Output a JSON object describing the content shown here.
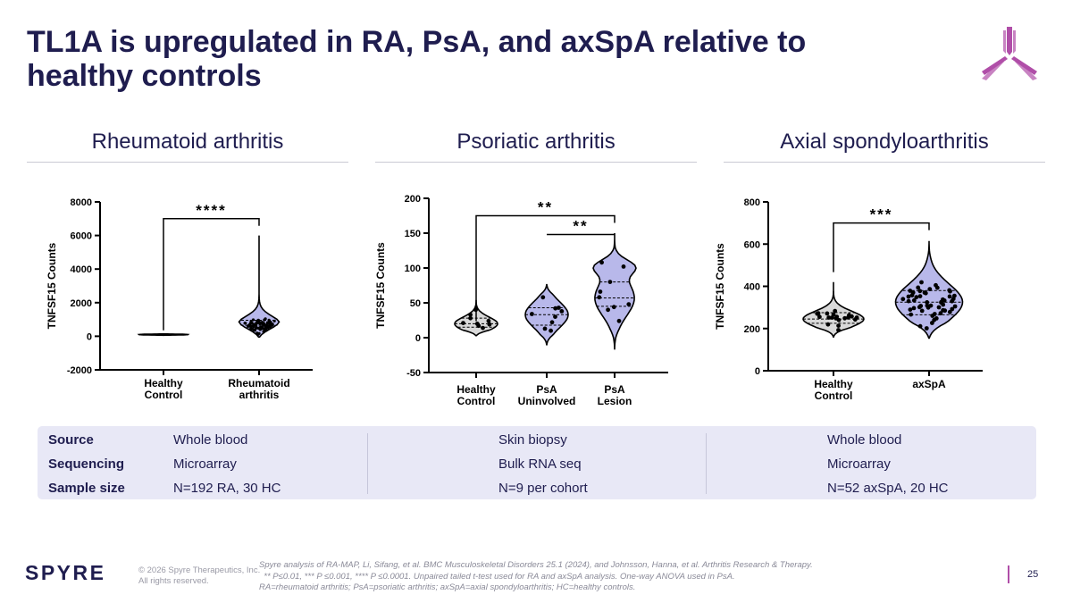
{
  "slide": {
    "title_line1": "TL1A is upregulated in RA, PsA, and axSpA relative to",
    "title_line2": "healthy controls",
    "page_number": "25"
  },
  "sections": [
    {
      "title": "Rheumatoid arthritis"
    },
    {
      "title": "Psoriatic arthritis"
    },
    {
      "title": "Axial spondyloarthritis"
    }
  ],
  "chart_data": [
    {
      "type": "violin",
      "ylabel": "TNFSF15 Counts",
      "ylim": [
        -2000,
        8000
      ],
      "yticks": [
        "-2000",
        "0",
        "2000",
        "4000",
        "6000",
        "8000"
      ],
      "ytick_values": [
        -2000,
        0,
        2000,
        4000,
        6000,
        8000
      ],
      "categories": [
        [
          "Healthy",
          "Control"
        ],
        [
          "Rheumatoid",
          "arthritis"
        ]
      ],
      "groups": [
        {
          "median": 100,
          "q1": 80,
          "q3": 120,
          "min": 60,
          "max": 140,
          "n": 30
        },
        {
          "median": 650,
          "q1": 450,
          "q3": 950,
          "min": -50,
          "max": 6000,
          "n": 192
        }
      ],
      "significance": [
        {
          "from": 0,
          "to": 1,
          "label": "****",
          "y": 7000
        }
      ]
    },
    {
      "type": "violin",
      "ylabel": "TNFSF15 Counts",
      "ylim": [
        -50,
        200
      ],
      "yticks": [
        "-50",
        "0",
        "50",
        "100",
        "150",
        "200"
      ],
      "ytick_values": [
        -50,
        0,
        50,
        100,
        150,
        200
      ],
      "categories": [
        [
          "Healthy",
          "Control"
        ],
        [
          "PsA",
          "Uninvolved"
        ],
        [
          "PsA",
          "Lesion"
        ]
      ],
      "groups": [
        {
          "median": 20,
          "q1": 15,
          "q3": 28,
          "min": 3,
          "max": 54,
          "n": 9,
          "points": [
            14,
            17,
            19,
            20,
            21,
            24,
            28,
            33,
            40
          ]
        },
        {
          "median": 33,
          "q1": 18,
          "q3": 43,
          "min": -10,
          "max": 76,
          "n": 9,
          "points": [
            10,
            13,
            22,
            30,
            34,
            38,
            42,
            43,
            58
          ]
        },
        {
          "median": 57,
          "q1": 45,
          "q3": 80,
          "min": -17,
          "max": 150,
          "n": 9,
          "points": [
            24,
            40,
            44,
            48,
            58,
            66,
            80,
            102,
            108
          ]
        }
      ],
      "significance": [
        {
          "from": 0,
          "to": 2,
          "label": "**",
          "y": 175
        },
        {
          "from": 1,
          "to": 2,
          "label": "**",
          "y": 148
        }
      ]
    },
    {
      "type": "violin",
      "ylabel": "TNFSF15 Counts",
      "ylim": [
        0,
        800
      ],
      "yticks": [
        "0",
        "200",
        "400",
        "600",
        "800"
      ],
      "ytick_values": [
        0,
        200,
        400,
        600,
        800
      ],
      "categories": [
        [
          "Healthy",
          "Control"
        ],
        [
          "axSpA"
        ]
      ],
      "groups": [
        {
          "median": 245,
          "q1": 225,
          "q3": 275,
          "min": 160,
          "max": 420,
          "n": 20
        },
        {
          "median": 325,
          "q1": 265,
          "q3": 380,
          "min": 155,
          "max": 615,
          "n": 52
        }
      ],
      "significance": [
        {
          "from": 0,
          "to": 1,
          "label": "***",
          "y": 700
        }
      ]
    }
  ],
  "info_table": {
    "labels": [
      "Source",
      "Sequencing",
      "Sample size"
    ],
    "columns": [
      [
        "Whole blood",
        "Microarray",
        "N=192 RA, 30 HC"
      ],
      [
        "Skin biopsy",
        "Bulk RNA seq",
        "N=9 per cohort"
      ],
      [
        "Whole blood",
        "Microarray",
        "N=52 axSpA, 20 HC"
      ]
    ]
  },
  "footer": {
    "logo_text": "SPYRE",
    "copyright_line1": "© 2026 Spyre Therapeutics, Inc.",
    "copyright_line2": "All rights reserved.",
    "note_line1": "Spyre analysis of RA-MAP, Li, Sifang, et al. BMC Musculoskeletal Disorders 25.1 (2024), and Johnsson, Hanna, et al. Arthritis Research & Therapy.",
    "note_line2": "  ** P≤0.01, *** P ≤0.001, **** P ≤0.0001. Unpaired tailed t-test used for RA and axSpA analysis. One-way ANOVA used in PsA.",
    "note_line3": "RA=rheumatoid arthritis; PsA=psoriatic arthritis; axSpA=axial spondyloarthritis; HC=healthy controls."
  },
  "colors": {
    "title": "#1f1d4f",
    "brand_magenta": "#b04ea8",
    "control_fill": "#d9d9d9",
    "disease_fill": "#b8b8ea",
    "info_bg": "#e8e8f6"
  }
}
